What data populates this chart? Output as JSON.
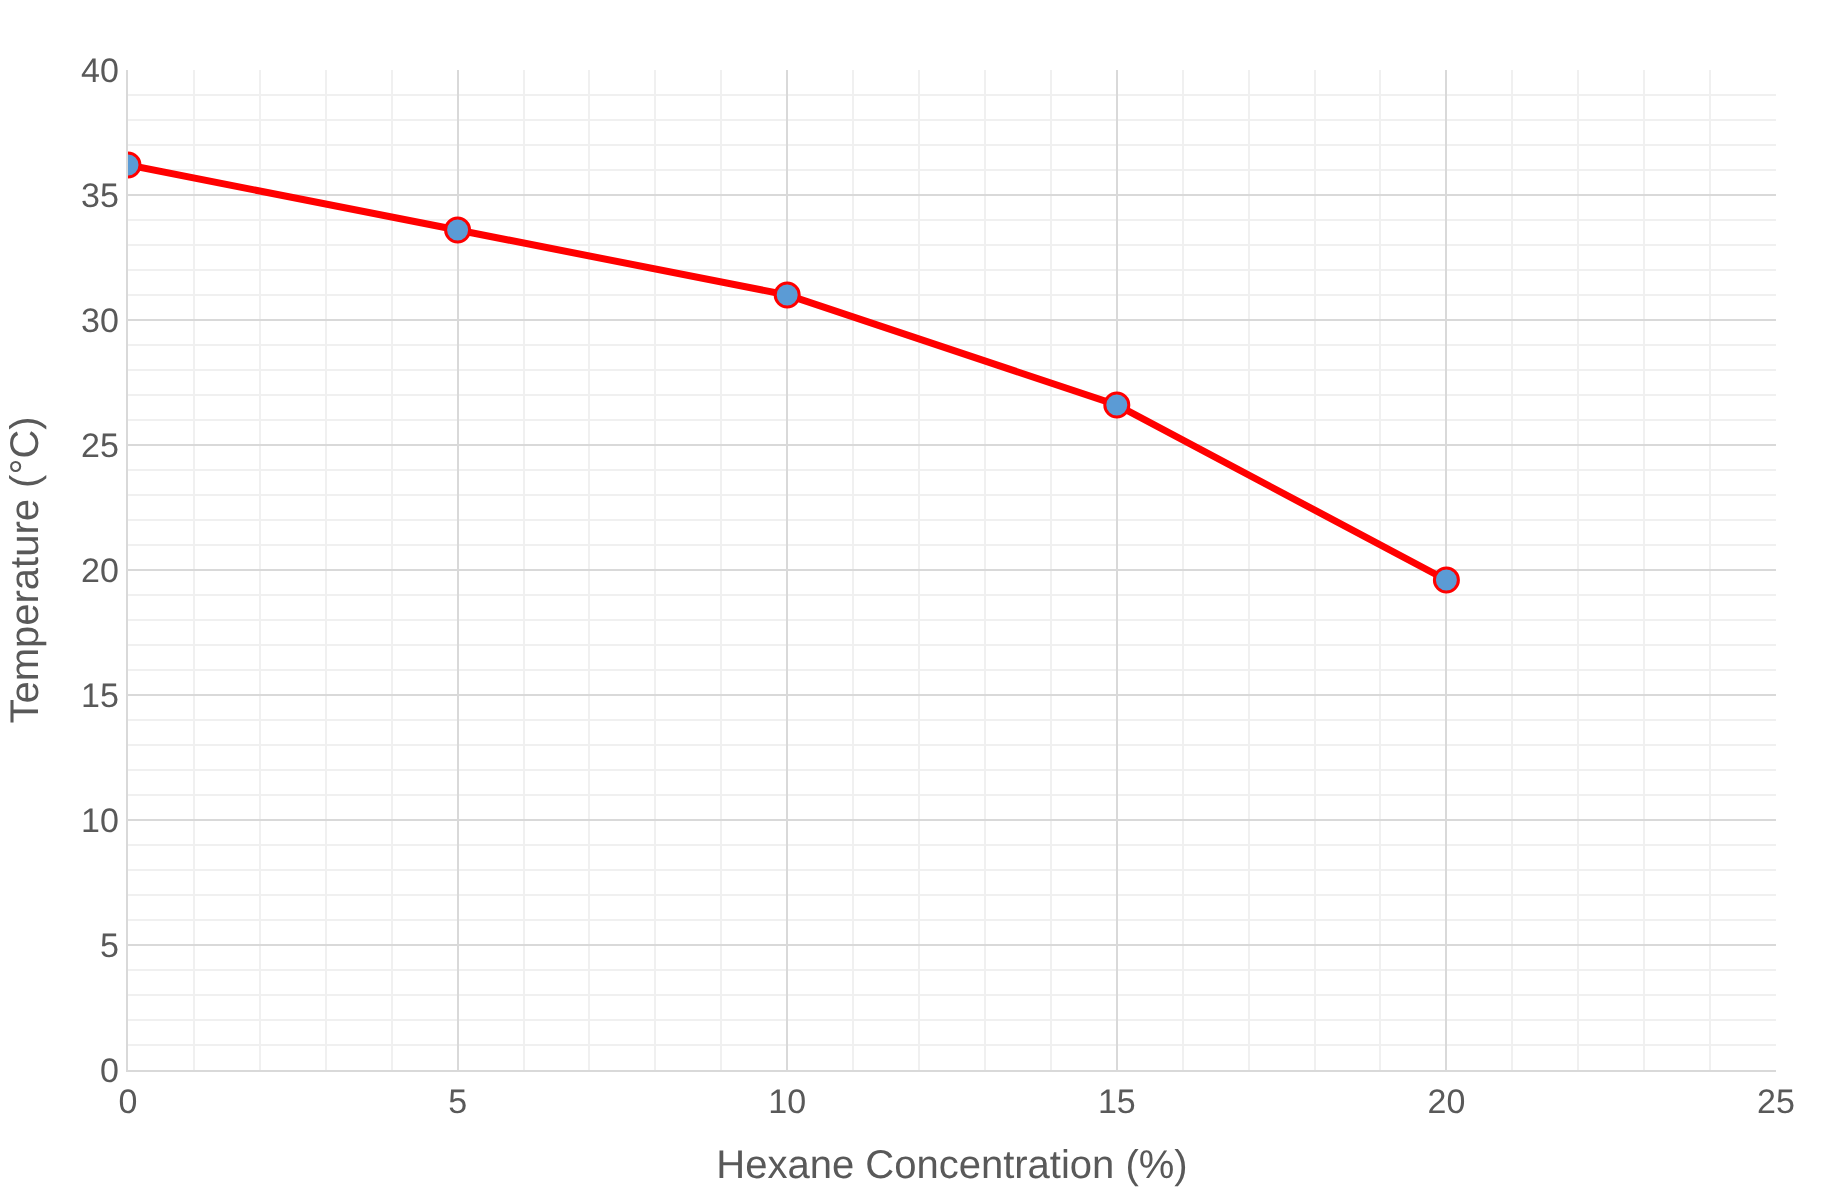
{
  "chart_data": {
    "type": "line",
    "xlabel": "Hexane Concentration (%)",
    "ylabel": "Temperature (°C)",
    "x": [
      0,
      5,
      10,
      15,
      20
    ],
    "series": [
      {
        "color": "#ff0000",
        "colors": [
          "#5b9bd5",
          "#5b9bd5",
          "#5b9bd5",
          "#5b9bd5",
          "#5b9bd5"
        ],
        "values": [
          36.2,
          33.6,
          31.0,
          26.6,
          19.6
        ]
      }
    ],
    "xlim": [
      0,
      25
    ],
    "xticks": [
      0,
      5,
      10,
      15,
      20,
      25
    ],
    "ylim": [
      0,
      40
    ],
    "yticks": [
      0,
      5,
      10,
      15,
      20,
      25,
      30,
      35,
      40
    ],
    "grid": true,
    "marker": "circle",
    "line_style": "solid"
  }
}
